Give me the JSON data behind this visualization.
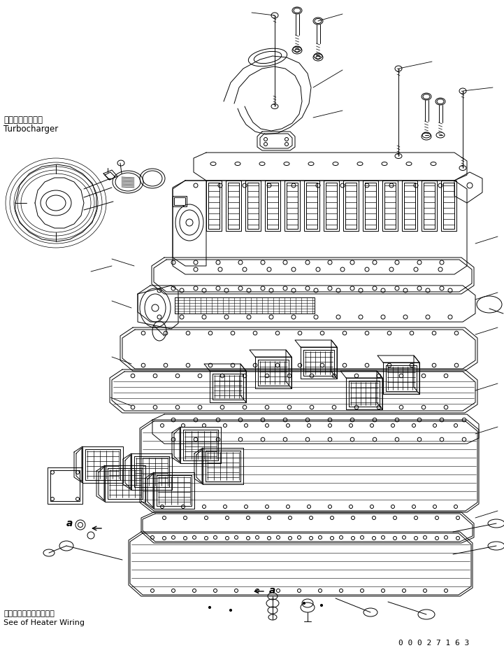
{
  "background_color": "#ffffff",
  "line_color": "#000000",
  "text_color": "#000000",
  "top_left_line1": "ターボチャージャ",
  "top_left_line2": "Turbocharger",
  "bottom_left_line1": "ヒータワイヤリング参照",
  "bottom_left_line2": "See of Heater Wiring",
  "bottom_right_text": "0 0 0 2 7 1 6 3",
  "label_a": "a"
}
